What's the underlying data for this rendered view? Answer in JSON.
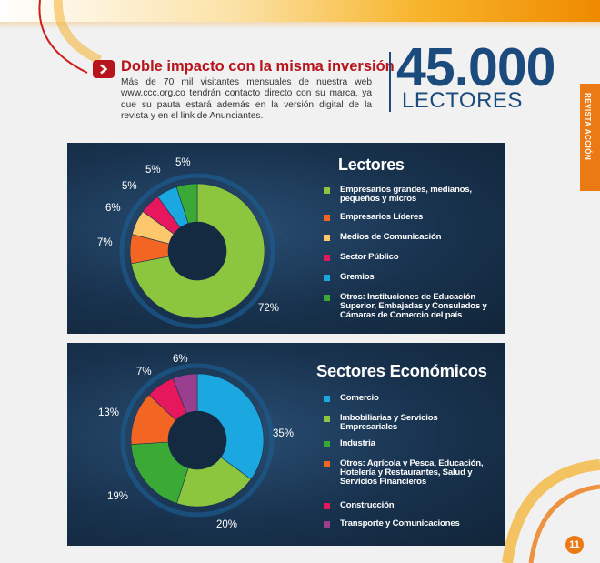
{
  "header": {
    "headline": "Doble impacto con la misma inversión",
    "intro": "Más de 70 mil visitantes mensuales de nuestra web www.ccc.org.co tendrán contacto directo con su marca, ya que su pauta estará además en la versión digital de la revista y en el link de Anunciantes.",
    "big_number": "45.000",
    "big_label": "LECTORES"
  },
  "side_tab": {
    "label": "REVISTA ACCIÓN"
  },
  "page_number": "11",
  "icons": {
    "headline_badge": "chevron-right-icon"
  },
  "colors": {
    "accent_red": "#b7141c",
    "brand_blue": "#1b4a7c",
    "orange": "#ec7a14",
    "panel_bg": "#18324e"
  },
  "chart_data": [
    {
      "type": "pie",
      "title": "Lectores",
      "donut": true,
      "categories": [
        "Empresarios grandes, medianos, pequeños y micros",
        "Empresarios Líderes",
        "Medios de Comunicación",
        "Sector Público",
        "Gremios",
        "Otros: Instituciones de Educación Superior, Embajadas y Consulados y Cámaras de Comercio del país"
      ],
      "values": [
        72,
        7,
        6,
        5,
        5,
        5
      ],
      "labels": [
        "72%",
        "7%",
        "6%",
        "5%",
        "5%",
        "5%"
      ],
      "colors": [
        "#8cc63f",
        "#f26522",
        "#fdc86b",
        "#e6175c",
        "#1ba7e0",
        "#3aa935"
      ],
      "legend_position": "right"
    },
    {
      "type": "pie",
      "title": "Sectores Económicos",
      "donut": true,
      "categories": [
        "Comercio",
        "Imbobiliarias y Servicios Empresariales",
        "Industria",
        "Otros: Agrícola y Pesca, Educación, Hotelería y Restaurantes, Salud y Servicios Financieros",
        "Construcción",
        "Transporte y Comunicaciones"
      ],
      "values": [
        35,
        20,
        19,
        13,
        7,
        6
      ],
      "labels": [
        "35%",
        "20%",
        "19%",
        "13%",
        "7%",
        "6%"
      ],
      "colors": [
        "#1ba7e0",
        "#8cc63f",
        "#3aa935",
        "#f26522",
        "#e6175c",
        "#9a3f8f"
      ],
      "legend_position": "right"
    }
  ]
}
